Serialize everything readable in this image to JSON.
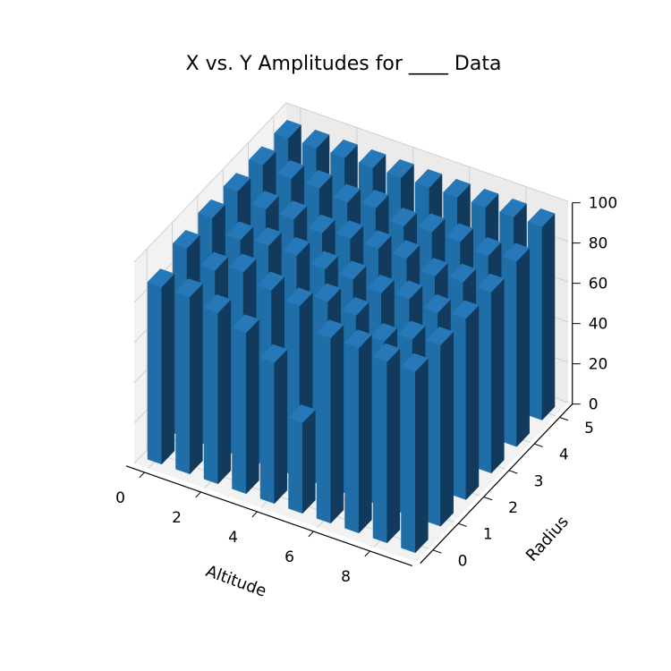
{
  "chart_data": {
    "type": "bar3d",
    "title": "X vs. Y Amplitudes for ____ Data",
    "xlabel": "Altitude",
    "ylabel": "Radius",
    "zlabel": "",
    "x_ticks": [
      "0",
      "2",
      "4",
      "6",
      "8"
    ],
    "y_ticks": [
      "0",
      "1",
      "2",
      "3",
      "4",
      "5"
    ],
    "z_ticks": [
      "0",
      "20",
      "40",
      "60",
      "80",
      "100"
    ],
    "xlim": [
      -0.5,
      9.5
    ],
    "ylim": [
      -0.5,
      5.5
    ],
    "zlim": [
      0,
      100
    ],
    "grid": true,
    "x": [
      0,
      1,
      2,
      3,
      4,
      5,
      6,
      7,
      8,
      9
    ],
    "y": [
      0,
      1,
      2,
      3,
      4,
      5
    ],
    "values": [
      [
        88,
        88,
        85,
        80,
        70,
        45,
        92,
        92,
        90,
        90
      ],
      [
        94,
        88,
        92,
        88,
        85,
        92,
        90,
        82,
        88,
        90
      ],
      [
        96,
        90,
        92,
        92,
        90,
        90,
        88,
        90,
        88,
        90
      ],
      [
        96,
        92,
        92,
        90,
        92,
        92,
        92,
        88,
        90,
        90
      ],
      [
        96,
        94,
        94,
        92,
        94,
        90,
        92,
        92,
        90,
        92
      ],
      [
        96,
        96,
        96,
        96,
        96,
        96,
        96,
        96,
        96,
        96
      ]
    ],
    "bar_color": "#1f77b4"
  }
}
